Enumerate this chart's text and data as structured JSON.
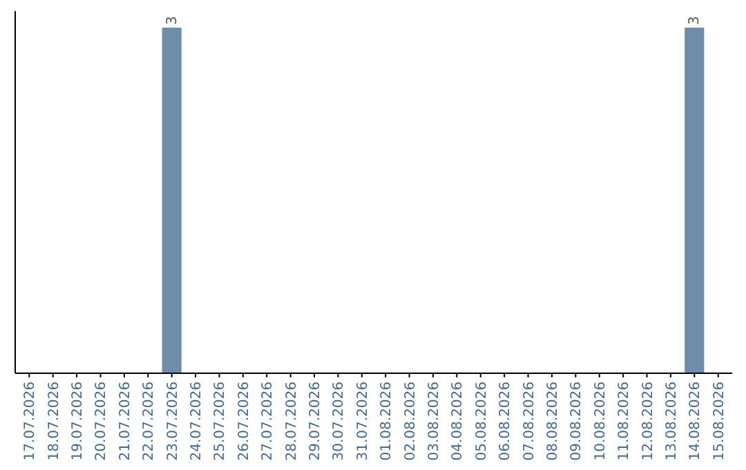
{
  "chart_data": {
    "type": "bar",
    "categories": [
      "17.07.2026",
      "18.07.2026",
      "19.07.2026",
      "20.07.2026",
      "21.07.2026",
      "22.07.2026",
      "23.07.2026",
      "24.07.2026",
      "25.07.2026",
      "26.07.2026",
      "27.07.2026",
      "28.07.2026",
      "29.07.2026",
      "30.07.2026",
      "31.07.2026",
      "01.08.2026",
      "02.08.2026",
      "03.08.2026",
      "04.08.2026",
      "05.08.2026",
      "06.08.2026",
      "07.08.2026",
      "08.08.2026",
      "09.08.2026",
      "10.08.2026",
      "11.08.2026",
      "12.08.2026",
      "13.08.2026",
      "14.08.2026",
      "15.08.2026"
    ],
    "values": [
      0,
      0,
      0,
      0,
      0,
      0,
      3,
      0,
      0,
      0,
      0,
      0,
      0,
      0,
      0,
      0,
      0,
      0,
      0,
      0,
      0,
      0,
      0,
      0,
      0,
      0,
      0,
      0,
      3,
      0
    ],
    "value_labels": [
      null,
      null,
      null,
      null,
      null,
      null,
      "3",
      null,
      null,
      null,
      null,
      null,
      null,
      null,
      null,
      null,
      null,
      null,
      null,
      null,
      null,
      null,
      null,
      null,
      null,
      null,
      null,
      null,
      "3",
      null
    ],
    "color": "#6e8dab"
  }
}
